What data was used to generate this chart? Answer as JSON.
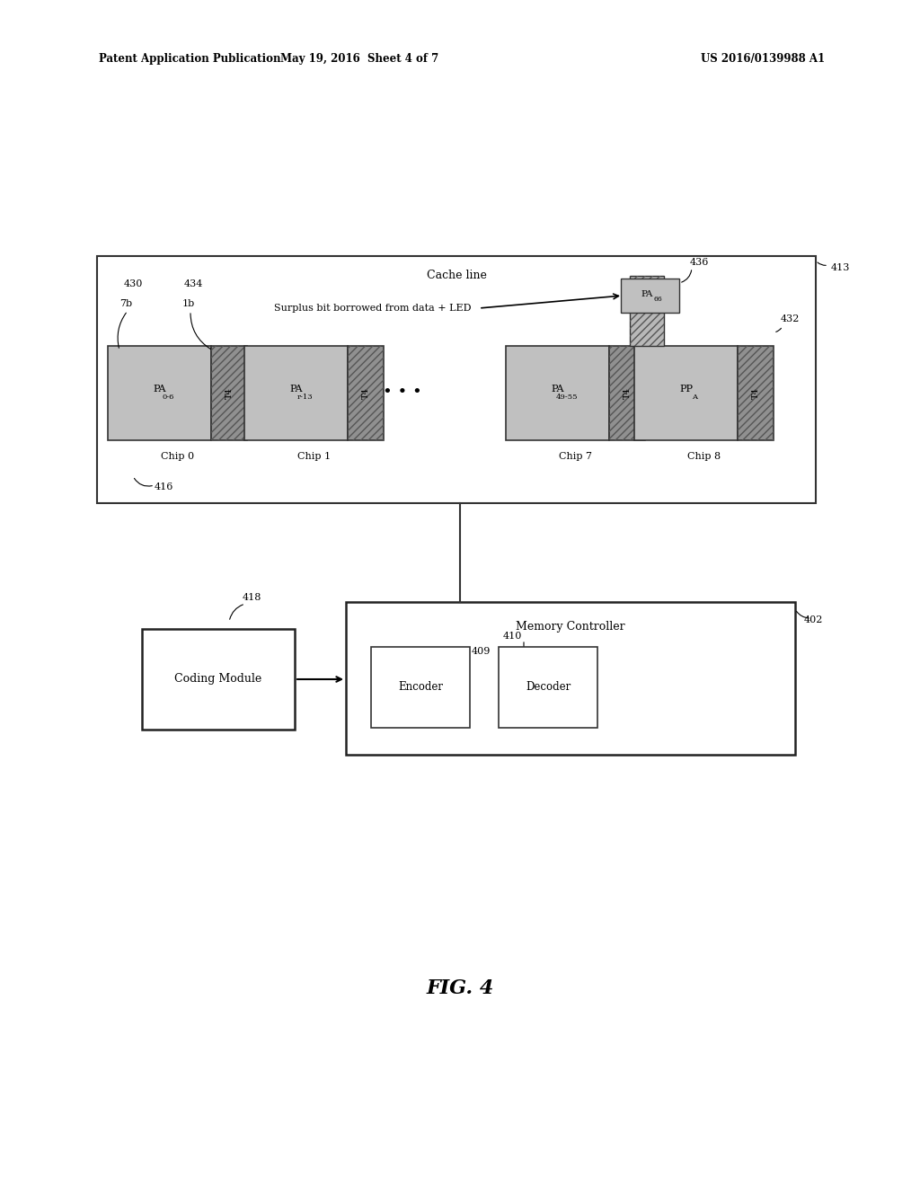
{
  "bg_color": "#ffffff",
  "header_left": "Patent Application Publication",
  "header_mid": "May 19, 2016  Sheet 4 of 7",
  "header_right": "US 2016/0139988 A1",
  "fig_label": "FIG. 4",
  "cache_line_label": "Cache line",
  "cache_line_ref": "413",
  "chip_labels": [
    "Chip 0",
    "Chip 1",
    "Chip 7",
    "Chip 8"
  ],
  "chip_ref": "416",
  "pa_labels_text": [
    "PA",
    "PA",
    "PA",
    "PP"
  ],
  "pa_subs": [
    "0-6",
    "r-13",
    "49-55",
    "A"
  ],
  "t4_label": "T4",
  "label_7b": "7b",
  "label_1b": "1b",
  "ref_430": "430",
  "ref_434": "434",
  "ref_436": "436",
  "ref_432": "432",
  "annotation_text": "Surplus bit borrowed from data + LED",
  "pa66_label": "PA",
  "pa66_sub": "66",
  "module_label": "Coding Module",
  "module_ref": "418",
  "mc_label": "Memory Controller",
  "mc_ref": "402",
  "encoder_label": "Encoder",
  "encoder_ref": "409",
  "decoder_label": "Decoder",
  "decoder_ref": "410",
  "light_gray": "#c0c0c0",
  "dark_gray": "#909090",
  "hatched_color": "#b8b8b8"
}
